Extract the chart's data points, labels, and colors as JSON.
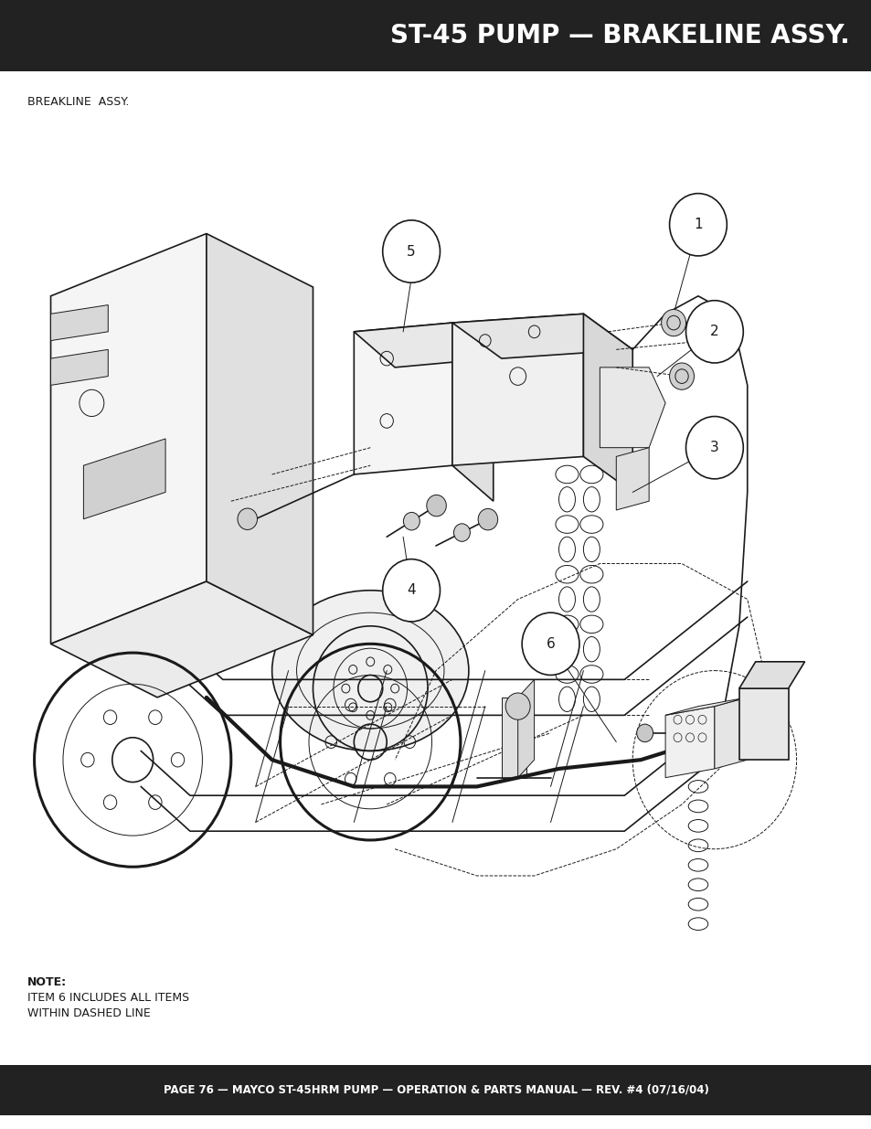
{
  "title": "ST-45 PUMP — BRAKELINE ASSY.",
  "subtitle": "BREAKLINE  ASSY.",
  "footer": "PAGE 76 — MAYCO ST-45HRM PUMP — OPERATION & PARTS MANUAL — REV. #4 (07/16/04)",
  "note_line1": "NOTE:",
  "note_line2": "ITEM 6 INCLUDES ALL ITEMS",
  "note_line3": "WITHIN DASHED LINE",
  "title_bg": "#222222",
  "title_color": "#ffffff",
  "footer_bg": "#222222",
  "footer_color": "#ffffff",
  "body_bg": "#ffffff",
  "body_text_color": "#1a1a1a",
  "title_fontsize": 20,
  "subtitle_fontsize": 9,
  "footer_fontsize": 8.5,
  "note_fontsize": 9,
  "fig_width": 9.54,
  "fig_height": 12.35
}
